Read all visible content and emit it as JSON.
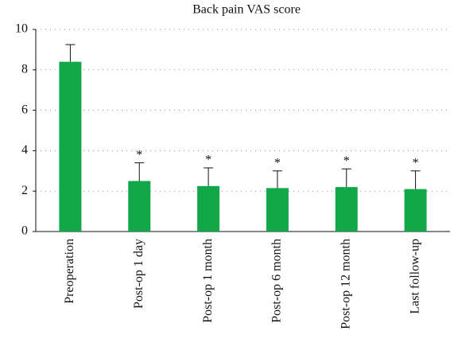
{
  "chart_data": {
    "type": "bar",
    "title": "Back pain VAS score",
    "categories": [
      "Preoperation",
      "Post-op 1 day",
      "Post-op 1 month",
      "Post-op 6 month",
      "Post-op 12 month",
      "Last follow-up"
    ],
    "values": [
      8.4,
      2.5,
      2.25,
      2.15,
      2.2,
      2.1
    ],
    "errors": [
      0.85,
      0.9,
      0.9,
      0.85,
      0.9,
      0.9
    ],
    "annotations": [
      null,
      "*",
      "*",
      "*",
      "*",
      "*"
    ],
    "color": "#12a84a",
    "ylim": [
      0,
      10
    ],
    "yticks": [
      0,
      2,
      4,
      6,
      8,
      10
    ],
    "grid": true
  }
}
